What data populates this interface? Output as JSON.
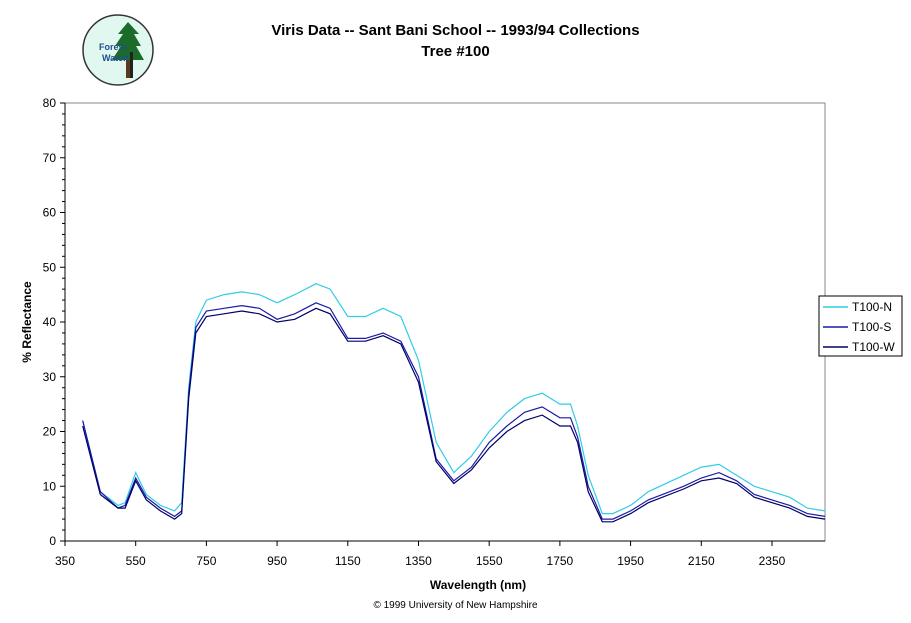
{
  "logo": {
    "text_line1": "Forest",
    "text_line2": "Watch"
  },
  "copyright": "© 1999 University of New Hampshire",
  "chart_data": {
    "type": "line",
    "title": "Viris Data -- Sant Bani School -- 1993/94 Collections",
    "subtitle": "Tree #100",
    "xlabel": "Wavelength (nm)",
    "ylabel": "% Reflectance",
    "xlim": [
      350,
      2500
    ],
    "ylim": [
      0,
      80
    ],
    "x_ticks": [
      350,
      550,
      750,
      950,
      1150,
      1350,
      1550,
      1750,
      1950,
      2150,
      2350
    ],
    "y_ticks": [
      0,
      10,
      20,
      30,
      40,
      50,
      60,
      70,
      80
    ],
    "grid": false,
    "legend_position": "right",
    "x": [
      400,
      450,
      500,
      520,
      550,
      580,
      620,
      660,
      680,
      700,
      720,
      750,
      800,
      850,
      900,
      950,
      1000,
      1060,
      1100,
      1150,
      1200,
      1250,
      1300,
      1350,
      1400,
      1450,
      1500,
      1550,
      1600,
      1650,
      1700,
      1750,
      1780,
      1800,
      1830,
      1870,
      1900,
      1950,
      2000,
      2100,
      2150,
      2200,
      2250,
      2300,
      2400,
      2450,
      2500
    ],
    "series": [
      {
        "name": "T100-N",
        "color": "#33CCE6",
        "values": [
          22,
          9,
          6.5,
          7,
          12.5,
          8.5,
          6.5,
          5.5,
          7,
          28,
          40,
          44,
          45,
          45.5,
          45,
          43.5,
          45,
          47,
          46,
          41,
          41,
          42.5,
          41,
          33,
          18,
          12.5,
          15.5,
          20,
          23.5,
          26,
          27,
          25,
          25,
          21,
          12,
          5,
          5,
          6.5,
          9,
          12,
          13.5,
          14,
          12,
          10,
          8,
          6,
          5.5
        ]
      },
      {
        "name": "T100-S",
        "color": "#1A1AA8",
        "values": [
          22,
          9,
          6,
          6.5,
          11.5,
          8,
          6,
          4.5,
          5.5,
          27,
          39,
          42,
          42.5,
          43,
          42.5,
          40.5,
          41.5,
          43.5,
          42.5,
          37,
          37,
          38,
          36.5,
          30,
          15,
          11,
          13.5,
          18,
          21,
          23.5,
          24.5,
          22.5,
          22.5,
          19,
          10,
          4,
          4,
          5.5,
          7.5,
          10,
          11.5,
          12.5,
          11,
          8.5,
          6.5,
          5,
          4.5
        ]
      },
      {
        "name": "T100-W",
        "color": "#000066",
        "values": [
          21,
          8.5,
          6,
          6,
          11,
          7.5,
          5.5,
          4,
          5,
          26,
          38,
          41,
          41.5,
          42,
          41.5,
          40,
          40.5,
          42.5,
          41.5,
          36.5,
          36.5,
          37.5,
          36,
          29,
          14.5,
          10.5,
          13,
          17,
          20,
          22,
          23,
          21,
          21,
          18,
          9,
          3.5,
          3.5,
          5,
          7,
          9.5,
          11,
          11.5,
          10.5,
          8,
          6,
          4.5,
          4
        ]
      }
    ]
  }
}
